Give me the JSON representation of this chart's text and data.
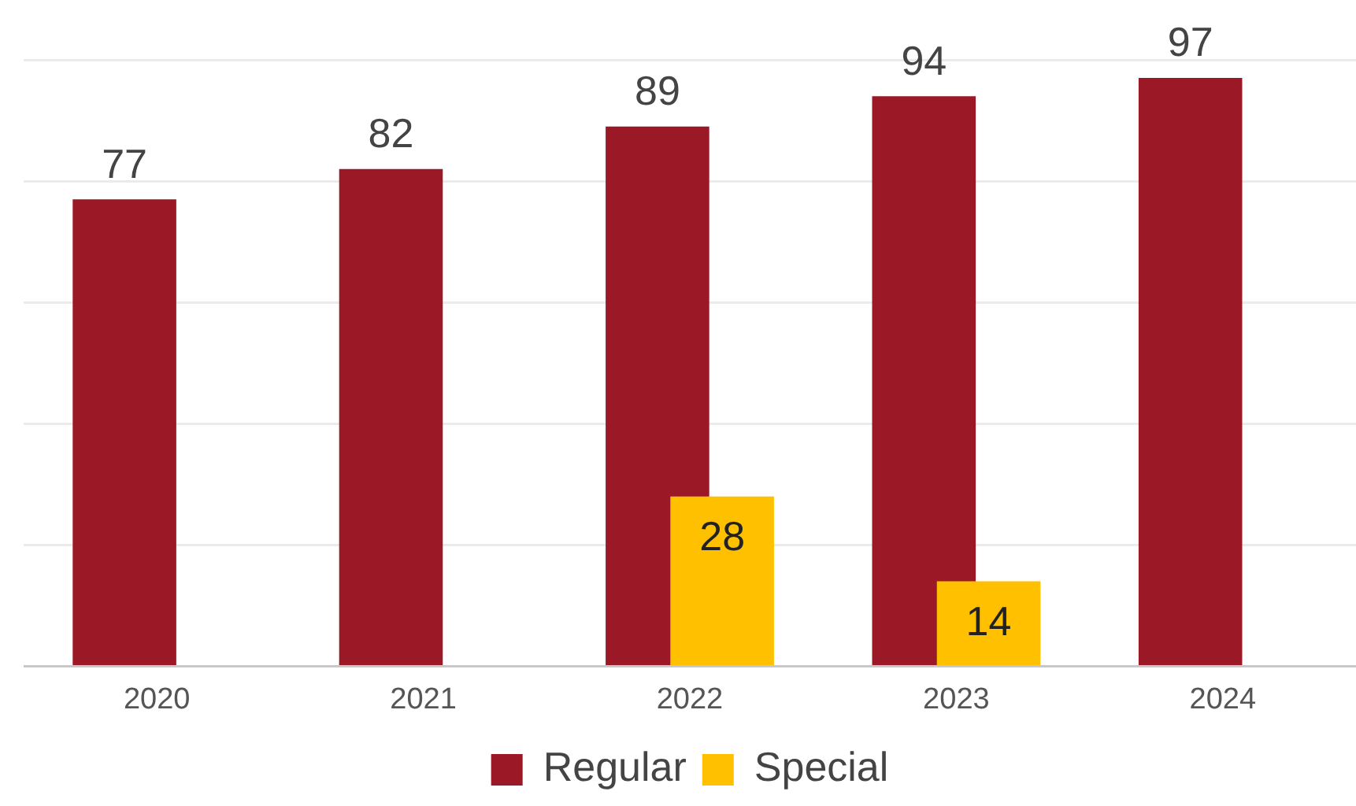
{
  "chart_data": {
    "type": "bar",
    "categories": [
      "2020",
      "2021",
      "2022",
      "2023",
      "2024"
    ],
    "series": [
      {
        "name": "Regular",
        "color": "#9b1826",
        "values": [
          77,
          82,
          89,
          94,
          97
        ]
      },
      {
        "name": "Special",
        "color": "#ffc000",
        "values": [
          null,
          null,
          28,
          14,
          null
        ]
      }
    ],
    "ylim": [
      0,
      100
    ],
    "yticks": [
      {
        "value": 0,
        "label": null
      },
      {
        "value": 20,
        "label": null
      },
      {
        "value": 40,
        "label": null
      },
      {
        "value": 60,
        "label": null
      },
      {
        "value": 80,
        "label": null
      },
      {
        "value": 100,
        "label": null
      }
    ],
    "tick_labels": "x",
    "grid": "y",
    "legend": "bottom",
    "data_labels": true
  }
}
